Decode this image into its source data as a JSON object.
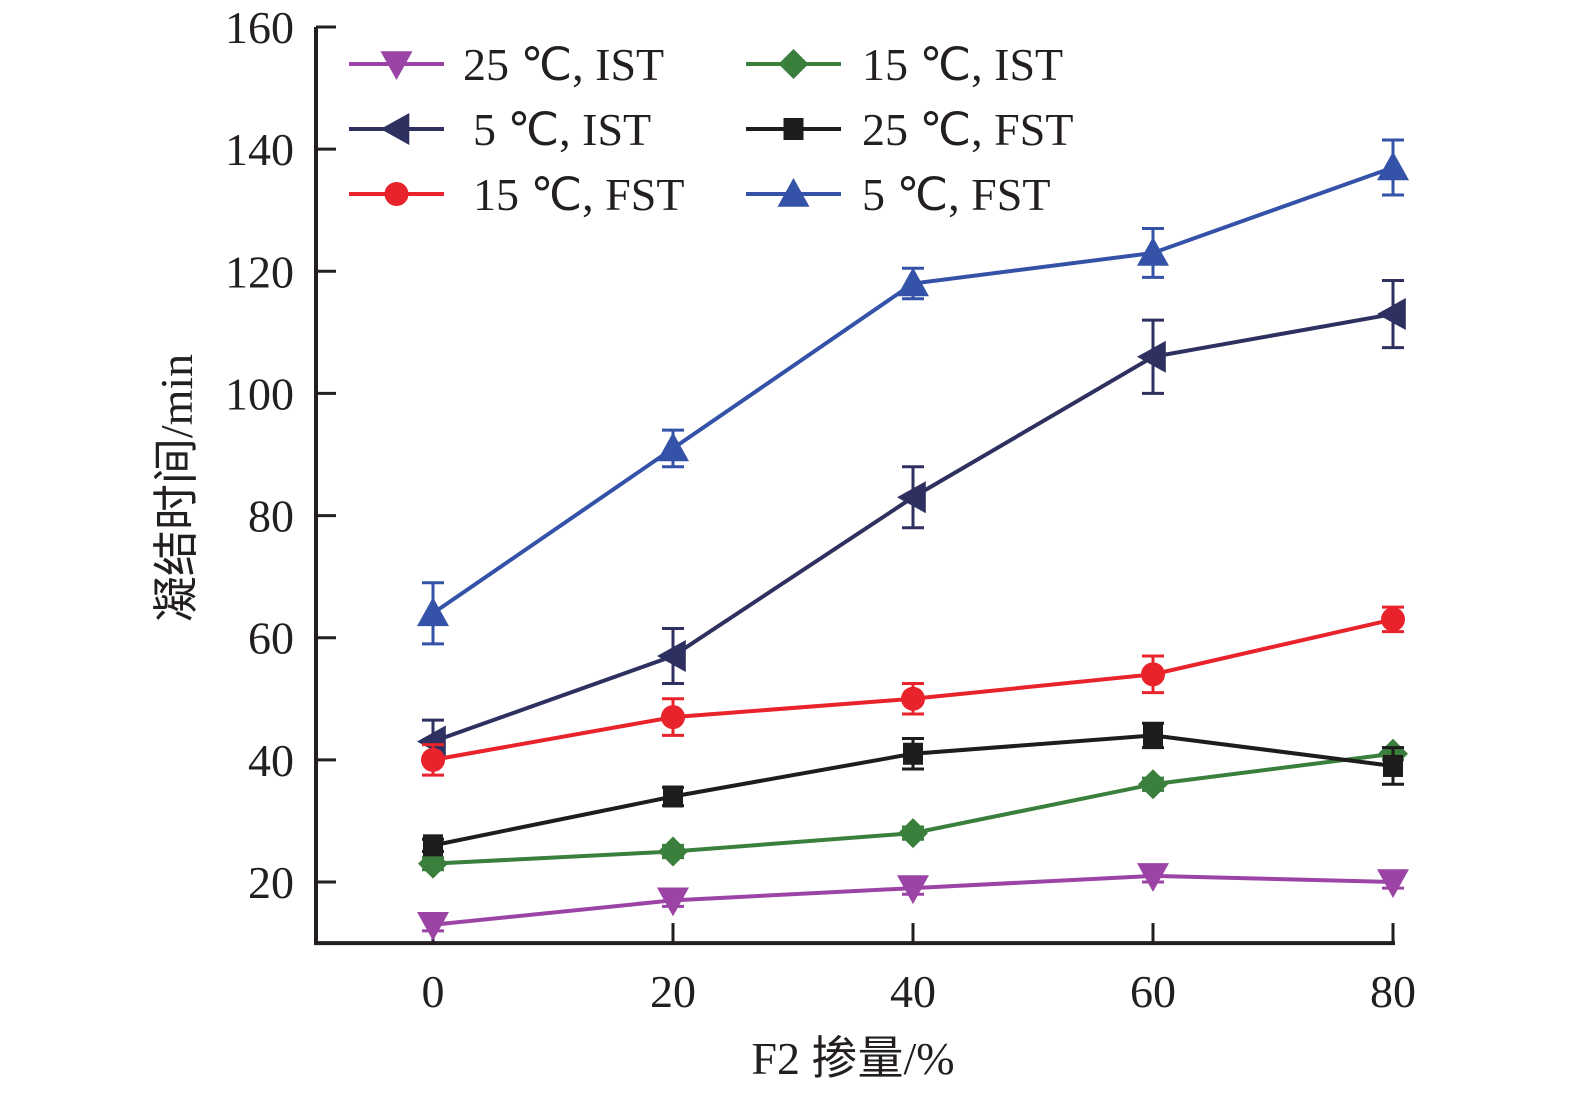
{
  "chart_data": {
    "type": "line",
    "title": "",
    "xlabel": "F2 掺量/%",
    "ylabel": "凝结时间/min",
    "x": [
      0,
      20,
      40,
      60,
      80
    ],
    "xlim": [
      -9.75,
      80
    ],
    "ylim": [
      10,
      160
    ],
    "xticks": [
      0,
      20,
      40,
      60,
      80
    ],
    "yticks": [
      20,
      40,
      60,
      80,
      100,
      120,
      140,
      160
    ],
    "xtick_labels": [
      "0",
      "20",
      "40",
      "60",
      "80"
    ],
    "ytick_labels": [
      "20",
      "40",
      "60",
      "80",
      "100",
      "120",
      "140",
      "160"
    ],
    "grid": false,
    "legend_position": "top-left",
    "series": [
      {
        "name": "25 ℃, IST",
        "color": "#9b44a6",
        "marker": "triangle-down",
        "values": [
          13,
          17,
          19,
          21,
          20
        ],
        "errors": [
          1,
          1,
          1,
          1,
          1
        ]
      },
      {
        "name": "15 ℃, IST",
        "color": "#3a7f3c",
        "marker": "diamond",
        "values": [
          23,
          25,
          28,
          36,
          41
        ],
        "errors": [
          1,
          1,
          1,
          1,
          1
        ]
      },
      {
        "name": "5 ℃, IST",
        "color": "#2e3160",
        "marker": "triangle-left",
        "values": [
          43,
          57,
          83,
          106,
          113
        ],
        "errors": [
          3.5,
          4.5,
          5,
          6,
          5.5
        ]
      },
      {
        "name": "25 ℃, FST",
        "color": "#1e1c1d",
        "marker": "square",
        "values": [
          26,
          34,
          41,
          44,
          39
        ],
        "errors": [
          1,
          1.5,
          2.5,
          2,
          3
        ]
      },
      {
        "name": "15 ℃, FST",
        "color": "#e8232b",
        "marker": "circle",
        "values": [
          40,
          47,
          50,
          54,
          63
        ],
        "errors": [
          2.5,
          3,
          2.5,
          3,
          2
        ]
      },
      {
        "name": "5 ℃, FST",
        "color": "#3452a8",
        "marker": "triangle-up",
        "values": [
          64,
          91,
          118,
          123,
          137
        ],
        "errors": [
          5,
          3,
          2.5,
          4,
          4.5
        ]
      }
    ]
  }
}
